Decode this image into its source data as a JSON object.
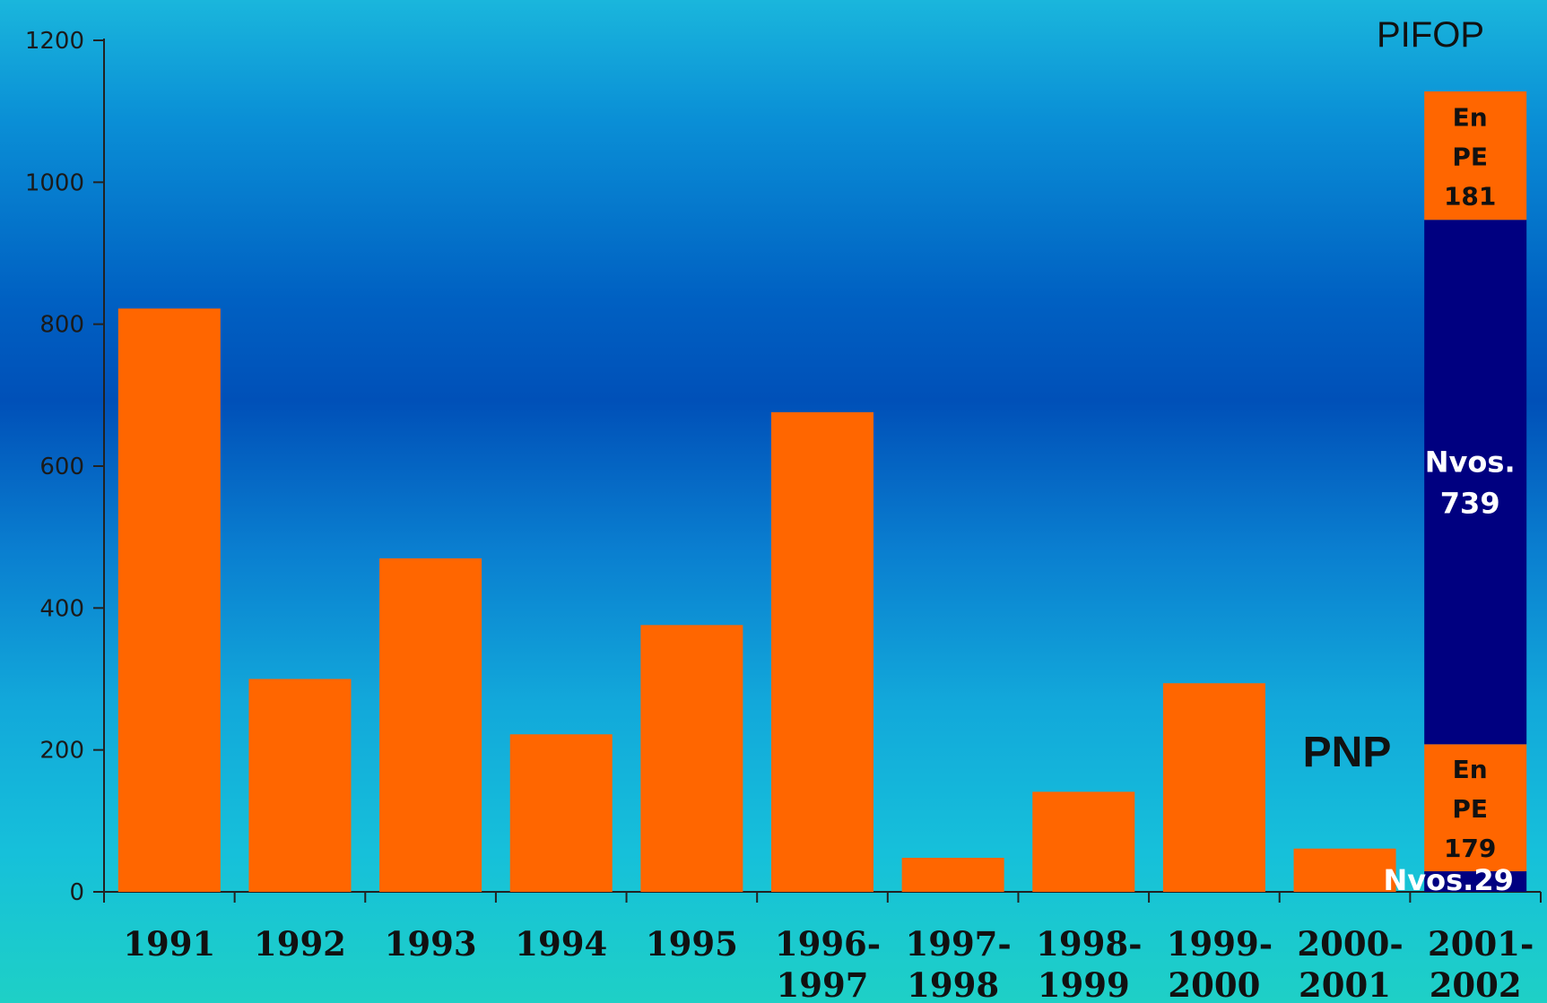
{
  "colors": {
    "bar": "#ff6600",
    "stack_new": "#000080",
    "axis": "#222222"
  },
  "chart_data": {
    "type": "bar",
    "ylim": [
      0,
      1200
    ],
    "yticks": [
      0,
      200,
      400,
      600,
      800,
      1000,
      1200
    ],
    "categories": [
      [
        "1991"
      ],
      [
        "1992"
      ],
      [
        "1993"
      ],
      [
        "1994"
      ],
      [
        "1995"
      ],
      [
        "1996-",
        "1997"
      ],
      [
        "1997-",
        "1998"
      ],
      [
        "1998-",
        "1999"
      ],
      [
        "1999-",
        "2000"
      ],
      [
        "2000-",
        "2001"
      ],
      [
        "2001-",
        "2002"
      ]
    ],
    "values": [
      822,
      300,
      470,
      222,
      376,
      676,
      48,
      141,
      294,
      61,
      null
    ],
    "stacked_bar": {
      "category_index": 10,
      "segments": [
        {
          "value": 29,
          "lines": [
            "Nvos.29"
          ],
          "color": "#000080",
          "style": "light"
        },
        {
          "value": 179,
          "lines": [
            "En",
            "PE",
            "179"
          ],
          "color": "#ff6600",
          "style": "dark"
        },
        {
          "value": 739,
          "lines": [
            "Nvos.",
            "739"
          ],
          "color": "#000080",
          "style": "light"
        },
        {
          "value": 181,
          "lines": [
            "En",
            "PE",
            "181"
          ],
          "color": "#ff6600",
          "style": "dark"
        }
      ]
    },
    "annotations": {
      "pnp": "PNP",
      "pifop": "PIFOP"
    }
  }
}
